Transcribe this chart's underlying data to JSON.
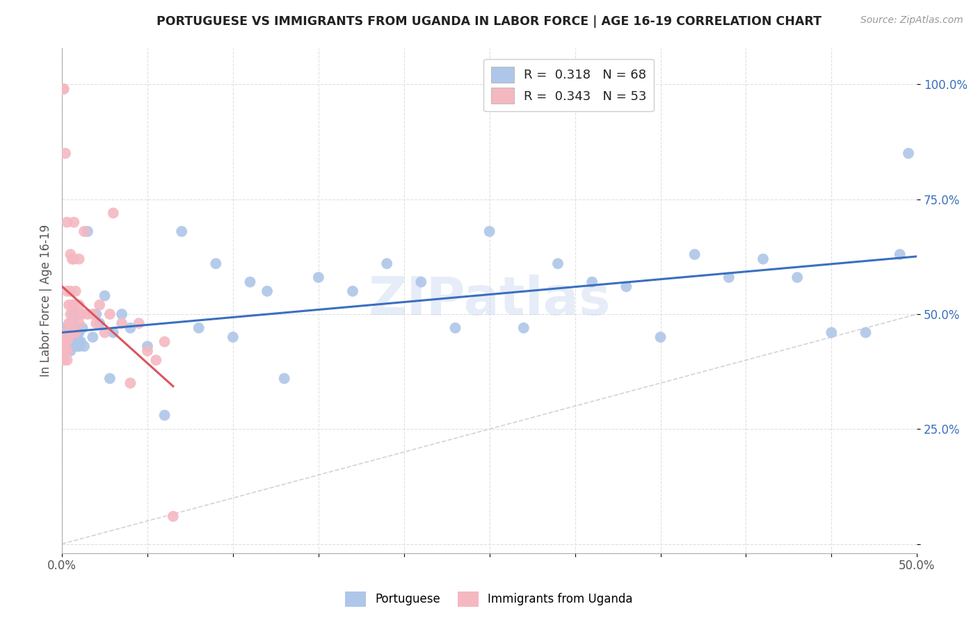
{
  "title": "PORTUGUESE VS IMMIGRANTS FROM UGANDA IN LABOR FORCE | AGE 16-19 CORRELATION CHART",
  "source": "Source: ZipAtlas.com",
  "ylabel": "In Labor Force | Age 16-19",
  "xlim": [
    0.0,
    0.5
  ],
  "ylim": [
    -0.02,
    1.08
  ],
  "xticks": [
    0.0,
    0.05,
    0.1,
    0.15,
    0.2,
    0.25,
    0.3,
    0.35,
    0.4,
    0.45,
    0.5
  ],
  "xtick_labels": [
    "0.0%",
    "",
    "",
    "",
    "",
    "",
    "",
    "",
    "",
    "",
    "50.0%"
  ],
  "yticks": [
    0.0,
    0.25,
    0.5,
    0.75,
    1.0
  ],
  "ytick_labels": [
    "",
    "25.0%",
    "50.0%",
    "75.0%",
    "100.0%"
  ],
  "blue_r": 0.318,
  "blue_n": 68,
  "pink_r": 0.343,
  "pink_n": 53,
  "blue_color": "#aec6e8",
  "pink_color": "#f4b8c1",
  "blue_line_color": "#3a6fbf",
  "pink_line_color": "#d9545e",
  "ref_line_color": "#c8c8c8",
  "watermark": "ZIPatlas",
  "blue_x": [
    0.001,
    0.001,
    0.002,
    0.002,
    0.003,
    0.003,
    0.003,
    0.004,
    0.004,
    0.004,
    0.005,
    0.005,
    0.005,
    0.005,
    0.006,
    0.006,
    0.006,
    0.007,
    0.007,
    0.007,
    0.008,
    0.008,
    0.009,
    0.009,
    0.01,
    0.01,
    0.01,
    0.01,
    0.011,
    0.012,
    0.013,
    0.015,
    0.018,
    0.02,
    0.022,
    0.025,
    0.028,
    0.03,
    0.035,
    0.04,
    0.05,
    0.06,
    0.07,
    0.08,
    0.09,
    0.1,
    0.11,
    0.12,
    0.13,
    0.15,
    0.17,
    0.19,
    0.21,
    0.23,
    0.25,
    0.27,
    0.29,
    0.31,
    0.33,
    0.35,
    0.37,
    0.39,
    0.41,
    0.43,
    0.45,
    0.47,
    0.49,
    0.495
  ],
  "blue_y": [
    0.44,
    0.47,
    0.44,
    0.46,
    0.44,
    0.43,
    0.46,
    0.45,
    0.44,
    0.47,
    0.44,
    0.42,
    0.46,
    0.48,
    0.44,
    0.43,
    0.5,
    0.46,
    0.44,
    0.48,
    0.45,
    0.43,
    0.44,
    0.46,
    0.44,
    0.43,
    0.46,
    0.5,
    0.44,
    0.47,
    0.43,
    0.68,
    0.45,
    0.5,
    0.48,
    0.54,
    0.36,
    0.46,
    0.5,
    0.47,
    0.43,
    0.28,
    0.68,
    0.47,
    0.61,
    0.45,
    0.57,
    0.55,
    0.36,
    0.58,
    0.55,
    0.61,
    0.57,
    0.47,
    0.68,
    0.47,
    0.61,
    0.57,
    0.56,
    0.45,
    0.63,
    0.58,
    0.62,
    0.58,
    0.46,
    0.46,
    0.63,
    0.85
  ],
  "pink_x": [
    0.001,
    0.001,
    0.001,
    0.001,
    0.001,
    0.001,
    0.001,
    0.002,
    0.002,
    0.002,
    0.002,
    0.002,
    0.003,
    0.003,
    0.003,
    0.003,
    0.003,
    0.004,
    0.004,
    0.004,
    0.005,
    0.005,
    0.005,
    0.005,
    0.005,
    0.006,
    0.006,
    0.006,
    0.007,
    0.007,
    0.007,
    0.008,
    0.008,
    0.009,
    0.01,
    0.01,
    0.01,
    0.012,
    0.013,
    0.015,
    0.018,
    0.02,
    0.022,
    0.025,
    0.028,
    0.03,
    0.035,
    0.04,
    0.045,
    0.05,
    0.055,
    0.06,
    0.065
  ],
  "pink_y": [
    0.42,
    0.45,
    0.99,
    0.99,
    0.4,
    0.44,
    0.42,
    0.85,
    0.44,
    0.42,
    0.46,
    0.44,
    0.7,
    0.55,
    0.4,
    0.42,
    0.44,
    0.52,
    0.45,
    0.48,
    0.63,
    0.48,
    0.5,
    0.55,
    0.48,
    0.62,
    0.52,
    0.46,
    0.62,
    0.52,
    0.7,
    0.46,
    0.55,
    0.5,
    0.52,
    0.48,
    0.62,
    0.5,
    0.68,
    0.5,
    0.5,
    0.48,
    0.52,
    0.46,
    0.5,
    0.72,
    0.48,
    0.35,
    0.48,
    0.42,
    0.4,
    0.44,
    0.06
  ]
}
